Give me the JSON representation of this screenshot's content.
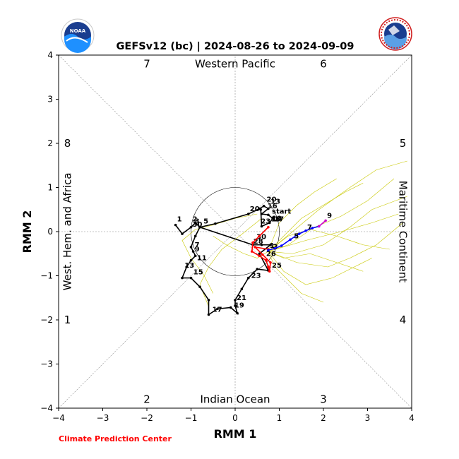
{
  "chart_data": {
    "type": "line",
    "title": "GEFSv12 (bc) | 2024-08-26 to 2024-09-09",
    "xlabel": "RMM 1",
    "ylabel": "RMM 2",
    "xlim": [
      -4,
      4
    ],
    "ylim": [
      -4,
      4
    ],
    "xticks": [
      -4,
      -3,
      -2,
      -1,
      0,
      1,
      2,
      3,
      4
    ],
    "yticks": [
      -4,
      -3,
      -2,
      -1,
      0,
      1,
      2,
      3,
      4
    ],
    "grid": false,
    "footer": "Climate Prediction Center",
    "region_labels": {
      "top": "Western Pacific",
      "bottom": "Indian Ocean",
      "left": "West. Hem. and Africa",
      "right": "Maritime Continent"
    },
    "phase_labels": [
      {
        "text": "7",
        "x": -2.0,
        "y": 3.8
      },
      {
        "text": "6",
        "x": 2.0,
        "y": 3.8
      },
      {
        "text": "8",
        "x": -3.8,
        "y": 2.0
      },
      {
        "text": "5",
        "x": 3.8,
        "y": 2.0
      },
      {
        "text": "1",
        "x": -3.8,
        "y": -2.0
      },
      {
        "text": "4",
        "x": 3.8,
        "y": -2.0
      },
      {
        "text": "2",
        "x": -2.0,
        "y": -3.8
      },
      {
        "text": "3",
        "x": 2.0,
        "y": -3.8
      }
    ],
    "colors": {
      "observed": "#000000",
      "forecast_week1": "#ff0000",
      "forecast_week2": "#0000ff",
      "forecast_end": "#cc00cc",
      "ensemble": "#c8c800",
      "footer": "#ff0000"
    },
    "series": [
      {
        "points": [
          [
            -1.35,
            0.15
          ],
          [
            -1.2,
            -0.05
          ],
          [
            -1.0,
            0.1
          ],
          [
            -0.9,
            0.2
          ],
          [
            -0.8,
            0.1
          ],
          [
            -0.9,
            -0.1
          ],
          [
            -1.0,
            -0.35
          ],
          [
            -0.95,
            -0.45
          ],
          [
            -0.9,
            -0.55
          ],
          [
            -1.0,
            -0.65
          ],
          [
            -1.1,
            -0.8
          ],
          [
            -1.2,
            -1.05
          ],
          [
            -1.0,
            -1.05
          ],
          [
            -0.8,
            -1.25
          ],
          [
            -0.6,
            -1.55
          ],
          [
            -0.6,
            -1.88
          ],
          [
            -0.4,
            -1.75
          ],
          [
            -0.1,
            -1.72
          ],
          [
            0.05,
            -1.85
          ],
          [
            0.0,
            -1.68
          ],
          [
            0.0,
            -1.55
          ],
          [
            0.15,
            -1.3
          ],
          [
            0.3,
            -1.05
          ],
          [
            0.5,
            -0.85
          ],
          [
            0.75,
            -0.88
          ],
          [
            0.55,
            -0.5
          ],
          [
            0.8,
            -0.3
          ],
          [
            0.6,
            -0.3
          ],
          [
            0.4,
            -0.3
          ],
          [
            -0.8,
            0.1
          ],
          [
            -0.45,
            0.18
          ],
          [
            0.3,
            0.4
          ],
          [
            0.55,
            0.52
          ],
          [
            0.65,
            0.58
          ],
          [
            0.75,
            0.52
          ],
          [
            0.6,
            0.4
          ],
          [
            0.75,
            0.38
          ],
          [
            0.85,
            0.3
          ],
          [
            0.78,
            0.2
          ],
          [
            0.6,
            0.12
          ],
          [
            0.58,
            0.5
          ]
        ],
        "labels": [
          {
            "text": "1",
            "x": -1.35,
            "y": 0.2
          },
          {
            "text": "2",
            "x": -1.0,
            "y": 0.2
          },
          {
            "text": "3",
            "x": -0.95,
            "y": 0.15
          },
          {
            "text": "30",
            "x": -1.0,
            "y": 0.08
          },
          {
            "text": "5",
            "x": -0.75,
            "y": 0.15
          },
          {
            "text": "7",
            "x": -0.95,
            "y": -0.38
          },
          {
            "text": "9",
            "x": -0.95,
            "y": -0.48
          },
          {
            "text": "11",
            "x": -0.9,
            "y": -0.68
          },
          {
            "text": "13",
            "x": -1.18,
            "y": -0.85
          },
          {
            "text": "15",
            "x": -0.98,
            "y": -1.0
          },
          {
            "text": "17",
            "x": -0.55,
            "y": -1.85
          },
          {
            "text": "19",
            "x": -0.05,
            "y": -1.75
          },
          {
            "text": "21",
            "x": 0.0,
            "y": -1.58
          },
          {
            "text": "23",
            "x": 0.33,
            "y": -1.08
          },
          {
            "text": "25",
            "x": 0.8,
            "y": -0.85
          },
          {
            "text": "26",
            "x": 0.67,
            "y": -0.58
          },
          {
            "text": "28",
            "x": 0.38,
            "y": -0.3
          },
          {
            "text": "30",
            "x": 0.45,
            "y": -0.2
          },
          {
            "text": "20",
            "x": 0.3,
            "y": 0.43
          },
          {
            "text": "20",
            "x": 0.68,
            "y": 0.65
          },
          {
            "text": "13",
            "x": 0.77,
            "y": 0.6
          },
          {
            "text": "16",
            "x": 0.7,
            "y": 0.5
          },
          {
            "text": "start",
            "x": 0.8,
            "y": 0.38
          },
          {
            "text": "13",
            "x": 0.78,
            "y": 0.2
          },
          {
            "text": "10",
            "x": 0.8,
            "y": 0.22
          },
          {
            "text": "17",
            "x": 0.85,
            "y": 0.2
          },
          {
            "text": "23",
            "x": 0.55,
            "y": 0.15
          }
        ]
      },
      {
        "points": [
          [
            0.75,
            0.1
          ],
          [
            0.55,
            -0.1
          ],
          [
            0.4,
            -0.25
          ],
          [
            0.38,
            -0.45
          ],
          [
            0.55,
            -0.55
          ],
          [
            0.7,
            -0.65
          ],
          [
            0.75,
            -0.8
          ],
          [
            0.78,
            -0.9
          ],
          [
            0.8,
            -0.7
          ],
          [
            0.62,
            -0.52
          ],
          [
            0.45,
            -0.35
          ],
          [
            0.75,
            -0.4
          ]
        ],
        "labels": [
          {
            "text": "1",
            "x": 0.75,
            "y": -0.4
          },
          {
            "text": "2",
            "x": 0.82,
            "y": -0.42
          }
        ]
      },
      {
        "points": [
          [
            0.75,
            -0.42
          ],
          [
            0.9,
            -0.38
          ],
          [
            1.05,
            -0.32
          ],
          [
            1.25,
            -0.18
          ],
          [
            1.45,
            -0.05
          ],
          [
            1.6,
            0.02
          ],
          [
            1.75,
            0.08
          ],
          [
            1.9,
            0.12
          ]
        ],
        "labels": [
          {
            "text": "5",
            "x": 1.3,
            "y": -0.18
          },
          {
            "text": "7",
            "x": 1.6,
            "y": 0.02
          }
        ]
      },
      {
        "points": [
          [
            1.9,
            0.12
          ],
          [
            2.05,
            0.25
          ]
        ],
        "labels": [
          {
            "text": "9",
            "x": 2.05,
            "y": 0.28
          }
        ]
      }
    ],
    "ensemble": [
      [
        [
          0.75,
          -0.45
        ],
        [
          1.2,
          -0.3
        ],
        [
          1.8,
          0.1
        ],
        [
          2.4,
          0.35
        ],
        [
          3.0,
          0.7
        ],
        [
          3.6,
          1.2
        ]
      ],
      [
        [
          0.75,
          -0.45
        ],
        [
          1.3,
          -0.5
        ],
        [
          2.0,
          -0.3
        ],
        [
          2.6,
          0.1
        ],
        [
          3.1,
          0.5
        ],
        [
          3.9,
          0.8
        ]
      ],
      [
        [
          0.75,
          -0.45
        ],
        [
          1.0,
          -0.2
        ],
        [
          1.5,
          0.3
        ],
        [
          2.0,
          0.6
        ],
        [
          2.5,
          0.9
        ],
        [
          2.9,
          1.1
        ]
      ],
      [
        [
          0.75,
          -0.45
        ],
        [
          1.4,
          -0.7
        ],
        [
          2.1,
          -0.8
        ],
        [
          2.6,
          -0.6
        ],
        [
          3.2,
          -0.3
        ],
        [
          3.8,
          0.2
        ]
      ],
      [
        [
          0.75,
          -0.45
        ],
        [
          1.1,
          -0.9
        ],
        [
          1.6,
          -1.2
        ],
        [
          2.2,
          -1.05
        ],
        [
          2.7,
          -0.8
        ],
        [
          3.1,
          -0.6
        ]
      ],
      [
        [
          0.75,
          -0.45
        ],
        [
          0.9,
          -0.8
        ],
        [
          1.2,
          -1.1
        ],
        [
          1.5,
          -1.4
        ],
        [
          2.0,
          -1.6
        ]
      ],
      [
        [
          0.75,
          -0.45
        ],
        [
          1.3,
          0.0
        ],
        [
          1.9,
          0.5
        ],
        [
          2.6,
          1.0
        ],
        [
          3.2,
          1.4
        ],
        [
          3.9,
          1.6
        ]
      ],
      [
        [
          0.75,
          -0.45
        ],
        [
          1.2,
          -0.1
        ],
        [
          1.7,
          0.05
        ],
        [
          2.3,
          -0.1
        ],
        [
          2.9,
          -0.3
        ],
        [
          3.5,
          -0.4
        ]
      ],
      [
        [
          0.75,
          -0.45
        ],
        [
          0.5,
          -0.6
        ],
        [
          0.2,
          -0.5
        ],
        [
          -0.2,
          -0.3
        ],
        [
          -0.5,
          -0.1
        ]
      ],
      [
        [
          0.75,
          -0.45
        ],
        [
          1.1,
          -0.6
        ],
        [
          1.7,
          -0.5
        ],
        [
          2.3,
          -0.7
        ],
        [
          2.9,
          -0.9
        ]
      ],
      [
        [
          0.75,
          -0.45
        ],
        [
          1.0,
          0.2
        ],
        [
          1.4,
          0.6
        ],
        [
          1.8,
          0.9
        ],
        [
          2.3,
          1.2
        ]
      ],
      [
        [
          0.75,
          -0.45
        ],
        [
          1.6,
          -0.2
        ],
        [
          2.4,
          0.0
        ],
        [
          3.1,
          0.2
        ],
        [
          3.7,
          0.4
        ]
      ],
      [
        [
          0.5,
          0.4
        ],
        [
          0.0,
          0.3
        ],
        [
          -0.5,
          0.15
        ],
        [
          -0.9,
          0.05
        ],
        [
          -1.2,
          -0.2
        ],
        [
          -1.0,
          -0.6
        ],
        [
          -0.7,
          -1.0
        ],
        [
          -0.5,
          -1.4
        ]
      ],
      [
        [
          0.6,
          0.3
        ],
        [
          0.1,
          -0.1
        ],
        [
          -0.3,
          -0.4
        ],
        [
          -0.6,
          -0.8
        ],
        [
          -0.8,
          -1.2
        ],
        [
          -0.6,
          -1.7
        ]
      ]
    ]
  }
}
